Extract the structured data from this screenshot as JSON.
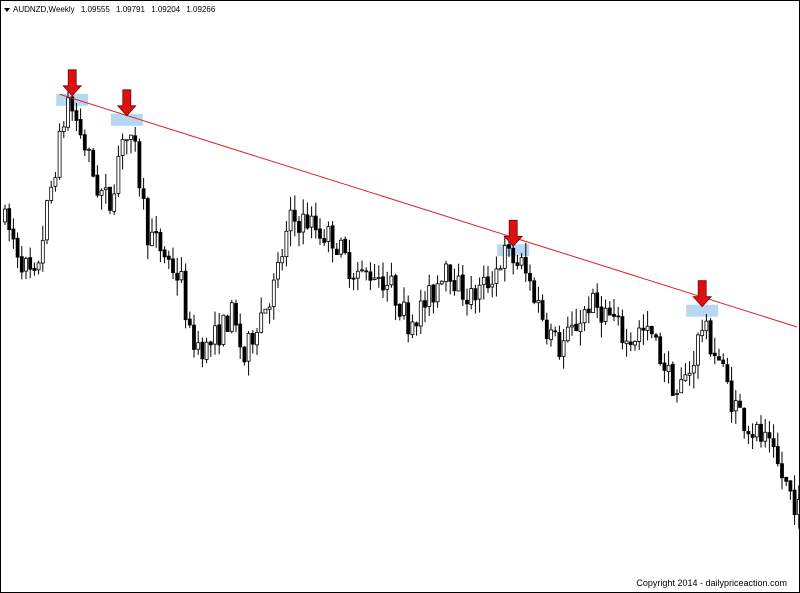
{
  "header": {
    "symbol": "AUDNZD,Weekly",
    "open": "1.09555",
    "high": "1.09791",
    "low": "1.09204",
    "close": "1.09266"
  },
  "footer": {
    "copyright": "Copyright 2014 - dailypriceaction.com"
  },
  "colors": {
    "background": "#ffffff",
    "candle": "#000000",
    "trendline": "#e02020",
    "arrow": "#dd1111",
    "highlight": "#a9d2ef"
  },
  "chart_data": {
    "type": "candlestick",
    "title": "",
    "xlabel": "",
    "ylabel": "",
    "ylim": [
      0.0,
      1.0
    ],
    "trendline": {
      "from": {
        "index": 13,
        "value": 0.868
      },
      "to": {
        "index": 188,
        "value": 0.45
      }
    },
    "markers": [
      {
        "index": 16,
        "value": 0.858,
        "icon": "down-arrow-icon"
      },
      {
        "index": 29,
        "value": 0.822,
        "icon": "down-arrow-icon"
      },
      {
        "index": 121,
        "value": 0.587,
        "icon": "down-arrow-icon"
      },
      {
        "index": 166,
        "value": 0.478,
        "icon": "down-arrow-icon"
      }
    ],
    "anchors": [
      [
        0,
        0.64
      ],
      [
        4,
        0.57
      ],
      [
        7,
        0.53
      ],
      [
        11,
        0.7
      ],
      [
        15,
        0.86
      ],
      [
        18,
        0.8
      ],
      [
        22,
        0.7
      ],
      [
        25,
        0.67
      ],
      [
        28,
        0.8
      ],
      [
        31,
        0.76
      ],
      [
        34,
        0.62
      ],
      [
        38,
        0.58
      ],
      [
        42,
        0.53
      ],
      [
        44,
        0.43
      ],
      [
        48,
        0.41
      ],
      [
        51,
        0.44
      ],
      [
        54,
        0.47
      ],
      [
        57,
        0.39
      ],
      [
        60,
        0.46
      ],
      [
        64,
        0.52
      ],
      [
        68,
        0.64
      ],
      [
        72,
        0.64
      ],
      [
        75,
        0.62
      ],
      [
        78,
        0.61
      ],
      [
        82,
        0.56
      ],
      [
        85,
        0.54
      ],
      [
        88,
        0.55
      ],
      [
        92,
        0.52
      ],
      [
        96,
        0.46
      ],
      [
        99,
        0.48
      ],
      [
        102,
        0.51
      ],
      [
        105,
        0.57
      ],
      [
        108,
        0.52
      ],
      [
        111,
        0.5
      ],
      [
        115,
        0.53
      ],
      [
        119,
        0.58
      ],
      [
        123,
        0.56
      ],
      [
        126,
        0.51
      ],
      [
        129,
        0.45
      ],
      [
        132,
        0.41
      ],
      [
        135,
        0.44
      ],
      [
        139,
        0.49
      ],
      [
        142,
        0.48
      ],
      [
        145,
        0.46
      ],
      [
        148,
        0.42
      ],
      [
        151,
        0.44
      ],
      [
        154,
        0.43
      ],
      [
        157,
        0.38
      ],
      [
        160,
        0.33
      ],
      [
        163,
        0.37
      ],
      [
        166,
        0.45
      ],
      [
        170,
        0.39
      ],
      [
        173,
        0.32
      ],
      [
        177,
        0.27
      ],
      [
        181,
        0.24
      ],
      [
        185,
        0.18
      ],
      [
        189,
        0.12
      ]
    ]
  }
}
